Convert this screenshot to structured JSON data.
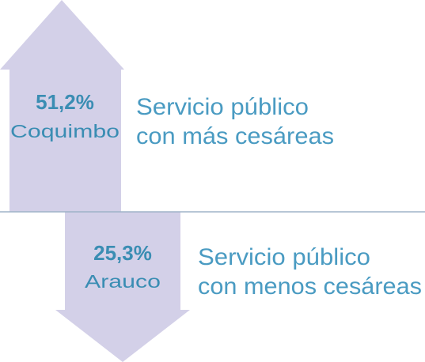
{
  "top": {
    "percent": "51,2%",
    "region": "Coquimbo",
    "label_lines": [
      "Servicio público",
      "con más cesáreas"
    ]
  },
  "bottom": {
    "percent": "25,3%",
    "region": "Arauco",
    "label_lines": [
      "Servicio público",
      "con menos cesáreas"
    ]
  }
}
